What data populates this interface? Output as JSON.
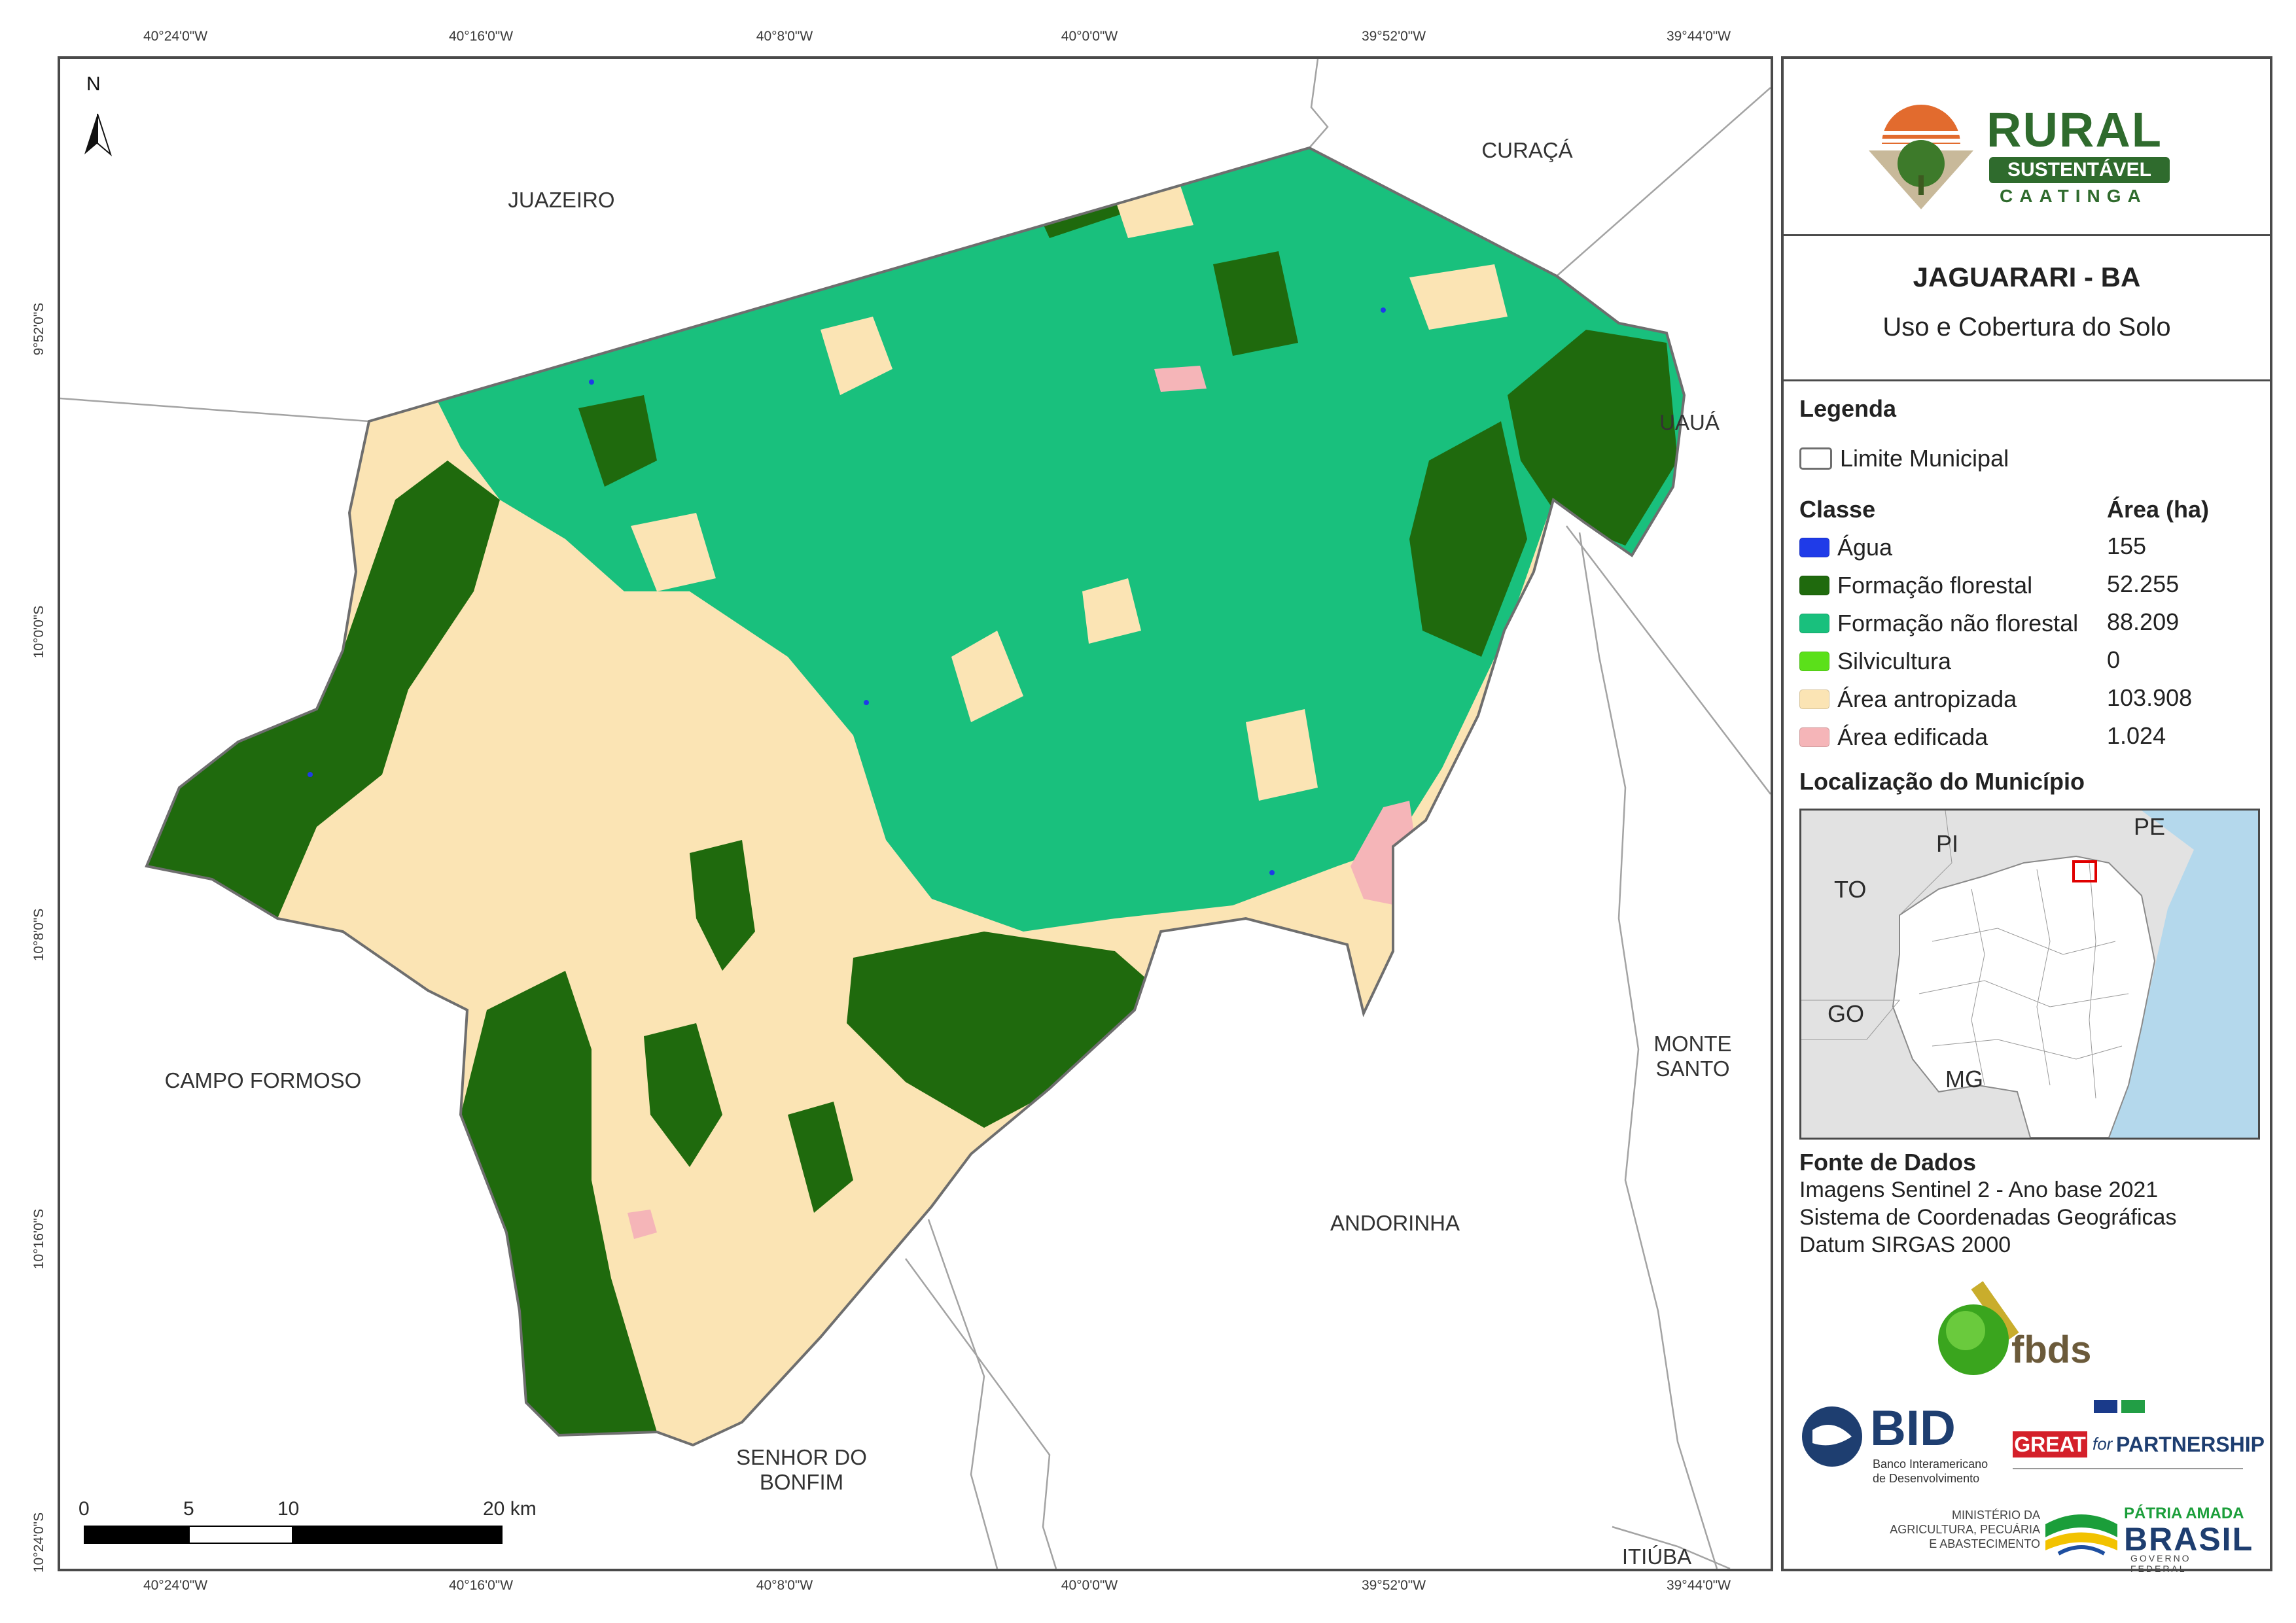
{
  "coords": {
    "lon": [
      "40°24'0\"W",
      "40°16'0\"W",
      "40°8'0\"W",
      "40°0'0\"W",
      "39°52'0\"W",
      "39°44'0\"W"
    ],
    "lat": [
      "9°52'0\"S",
      "10°0'0\"S",
      "10°8'0\"S",
      "10°16'0\"S",
      "10°24'0\"S"
    ]
  },
  "map": {
    "north": "N",
    "neighbors": {
      "juazeiro": "JUAZEIRO",
      "curaca": "CURAÇÁ",
      "uaua": "UAUÁ",
      "campo_formoso": "CAMPO FORMOSO",
      "monte_santo_1": "MONTE",
      "monte_santo_2": "SANTO",
      "andorinha": "ANDORINHA",
      "senhor_1": "SENHOR DO",
      "senhor_2": "BONFIM",
      "itiuba": "ITIÚBA"
    },
    "scale": {
      "labels": [
        "0",
        "5",
        "10",
        "20 km"
      ]
    }
  },
  "panel": {
    "logo": {
      "line1": "RURAL",
      "line2": "SUSTENTÁVEL",
      "line3": "CAATINGA"
    },
    "title": "JAGUARARI - BA",
    "subtitle": "Uso e Cobertura do Solo",
    "legend": {
      "heading": "Legenda",
      "limit_label": "Limite Municipal",
      "class_header": "Classe",
      "area_header": "Área (ha)",
      "classes": [
        {
          "label": "Água",
          "value": "155",
          "color": "#1f3be8"
        },
        {
          "label": "Formação florestal",
          "value": "52.255",
          "color": "#1f6a0d"
        },
        {
          "label": "Formação não florestal",
          "value": "88.209",
          "color": "#19c07d"
        },
        {
          "label": "Silvicultura",
          "value": "0",
          "color": "#5be01a"
        },
        {
          "label": "Área antropizada",
          "value": "103.908",
          "color": "#fbe4b4"
        },
        {
          "label": "Área edificada",
          "value": "1.024",
          "color": "#f5b5b8"
        }
      ]
    },
    "location": {
      "heading": "Localização do Município",
      "states": [
        "PI",
        "PE",
        "TO",
        "GO",
        "MG"
      ]
    },
    "sources": {
      "heading": "Fonte de Dados",
      "lines": [
        "Imagens Sentinel 2 - Ano base 2021",
        "Sistema de Coordenadas Geográficas",
        "Datum SIRGAS 2000"
      ]
    },
    "logos": {
      "fbds": "fbds",
      "bid": "BID",
      "bid_sub1": "Banco Interamericano",
      "bid_sub2": "de Desenvolvimento",
      "great": "GREAT",
      "great_for": "for",
      "partnership": "PARTNERSHIP",
      "ministry1": "MINISTÉRIO DA",
      "ministry2": "AGRICULTURA, PECUÁRIA",
      "ministry3": "E ABASTECIMENTO",
      "patria": "PÁTRIA AMADA",
      "brasil": "BRASIL",
      "gov": "GOVERNO FEDERAL"
    }
  }
}
